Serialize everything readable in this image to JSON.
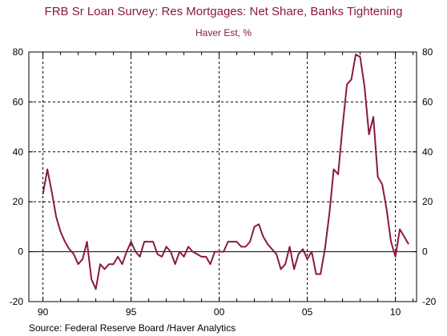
{
  "chart_data": {
    "type": "line",
    "title": "FRB Sr Loan Survey: Res Mortgages: Net Share, Banks Tightening",
    "subtitle": "Haver Est, %",
    "source": "Source:  Federal Reserve Board /Haver Analytics",
    "x_start": 1990.0,
    "x_step": 0.25,
    "xlim": [
      1989.2,
      2011.2
    ],
    "ylim": [
      -20,
      80
    ],
    "yticks": [
      -20,
      0,
      20,
      40,
      60,
      80
    ],
    "xticks": [
      {
        "value": 1990,
        "label": "90"
      },
      {
        "value": 1995,
        "label": "95"
      },
      {
        "value": 2000,
        "label": "00"
      },
      {
        "value": 2005,
        "label": "05"
      },
      {
        "value": 2010,
        "label": "10"
      }
    ],
    "grid": true,
    "zero_line": true,
    "line_color": "#8b1a3a",
    "series": [
      {
        "values": [
          23,
          33,
          24,
          14,
          8,
          4,
          1,
          -1,
          -5,
          -3,
          4,
          -11,
          -15,
          -5,
          -7,
          -5,
          -5,
          -2,
          -5,
          0,
          4,
          0,
          -2,
          4,
          4,
          4,
          -1,
          -2,
          2,
          0,
          -5,
          0,
          -2,
          2,
          0,
          -1,
          -2,
          -2,
          -5,
          0,
          0,
          0,
          4,
          4,
          4,
          2,
          2,
          4,
          10,
          11,
          6,
          3,
          1,
          -1,
          -7,
          -5,
          2,
          -7,
          -1,
          1,
          -3,
          0,
          -9,
          -9,
          1,
          15,
          33,
          31,
          50,
          67,
          69,
          79,
          78,
          66,
          47,
          54,
          30,
          27,
          17,
          4,
          -2,
          9,
          6,
          3
        ]
      }
    ]
  }
}
